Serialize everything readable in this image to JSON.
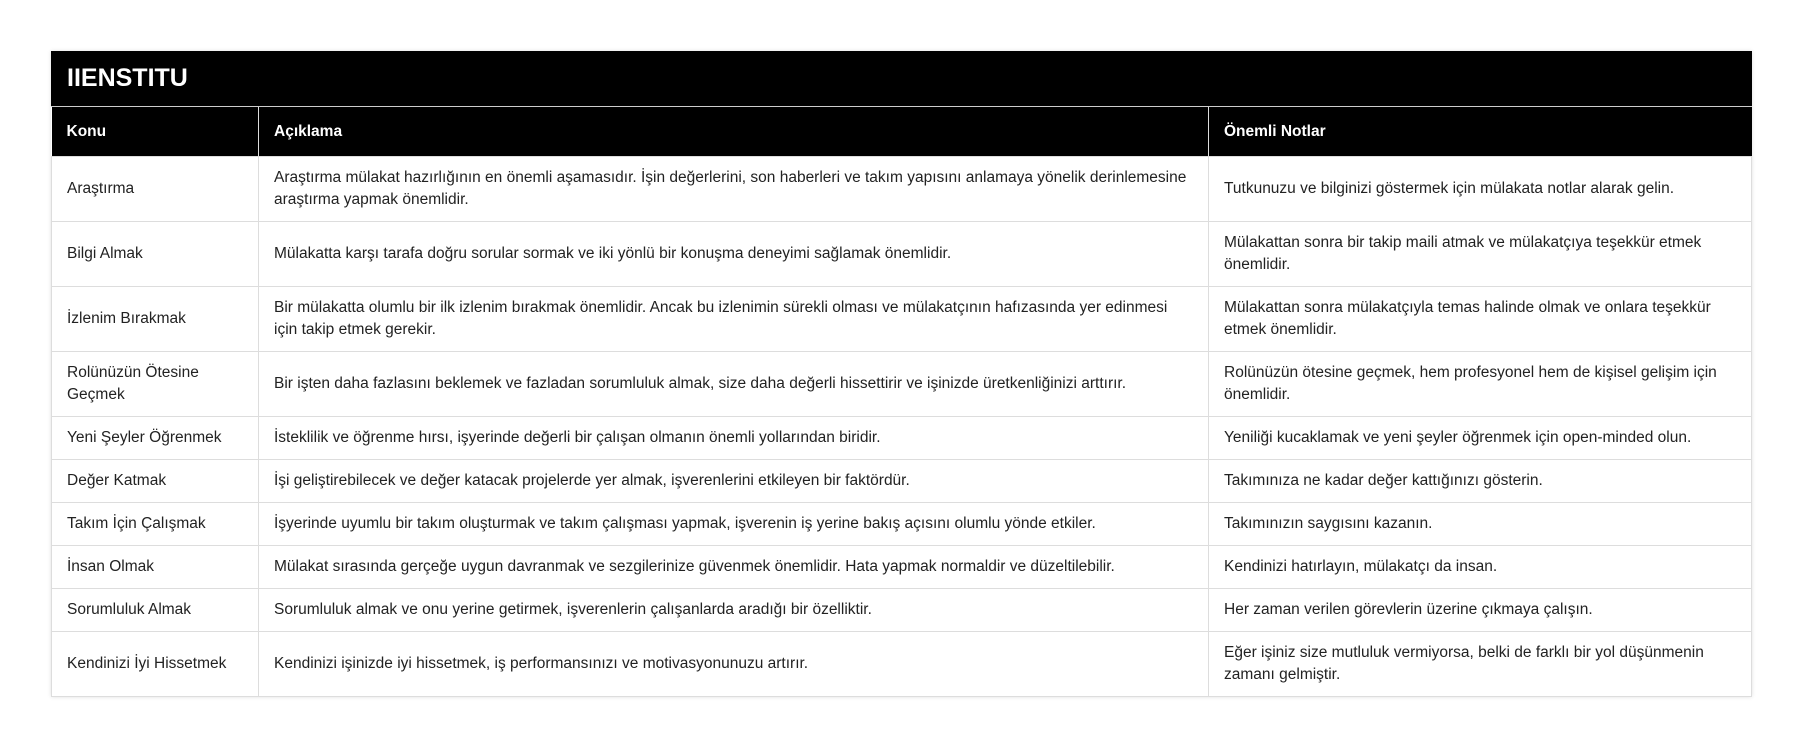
{
  "title": "IIENSTITU",
  "columns": [
    "Konu",
    "Açıklama",
    "Önemli Notlar"
  ],
  "rows": [
    [
      "Araştırma",
      "Araştırma mülakat hazırlığının en önemli aşamasıdır. İşin değerlerini, son haberleri ve takım yapısını anlamaya yönelik derinlemesine araştırma yapmak önemlidir.",
      "Tutkunuzu ve bilginizi göstermek için mülakata notlar alarak gelin."
    ],
    [
      "Bilgi Almak",
      "Mülakatta karşı tarafa doğru sorular sormak ve iki yönlü bir konuşma deneyimi sağlamak önemlidir.",
      "Mülakattan sonra bir takip maili atmak ve mülakatçıya teşekkür etmek önemlidir."
    ],
    [
      "İzlenim Bırakmak",
      "Bir mülakatta olumlu bir ilk izlenim bırakmak önemlidir. Ancak bu izlenimin sürekli olması ve mülakatçının hafızasında yer edinmesi için takip etmek gerekir.",
      "Mülakattan sonra mülakatçıyla temas halinde olmak ve onlara teşekkür etmek önemlidir."
    ],
    [
      "Rolünüzün Ötesine Geçmek",
      "Bir işten daha fazlasını beklemek ve fazladan sorumluluk almak, size daha değerli hissettirir ve işinizde üretkenliğinizi arttırır.",
      "Rolünüzün ötesine geçmek, hem profesyonel hem de kişisel gelişim için önemlidir."
    ],
    [
      "Yeni Şeyler Öğrenmek",
      "İsteklilik ve öğrenme hırsı, işyerinde değerli bir çalışan olmanın önemli yollarından biridir.",
      "Yeniliği kucaklamak ve yeni şeyler öğrenmek için open-minded olun."
    ],
    [
      "Değer Katmak",
      "İşi geliştirebilecek ve değer katacak projelerde yer almak, işverenlerini etkileyen bir faktördür.",
      "Takımınıza ne kadar değer kattığınızı gösterin."
    ],
    [
      "Takım İçin Çalışmak",
      "İşyerinde uyumlu bir takım oluşturmak ve takım çalışması yapmak, işverenin iş yerine bakış açısını olumlu yönde etkiler.",
      "Takımınızın saygısını kazanın."
    ],
    [
      "İnsan Olmak",
      "Mülakat sırasında gerçeğe uygun davranmak ve sezgilerinize güvenmek önemlidir. Hata yapmak normaldir ve düzeltilebilir.",
      "Kendinizi hatırlayın, mülakatçı da insan."
    ],
    [
      "Sorumluluk Almak",
      "Sorumluluk almak ve onu yerine getirmek, işverenlerin çalışanlarda aradığı bir özelliktir.",
      "Her zaman verilen görevlerin üzerine çıkmaya çalışın."
    ],
    [
      "Kendinizi İyi Hissetmek",
      "Kendinizi işinizde iyi hissetmek, iş performansınızı ve motivasyonunuzu artırır.",
      "Eğer işiniz size mutluluk vermiyorsa, belki de farklı bir yol düşünmenin zamanı gelmiştir."
    ]
  ]
}
